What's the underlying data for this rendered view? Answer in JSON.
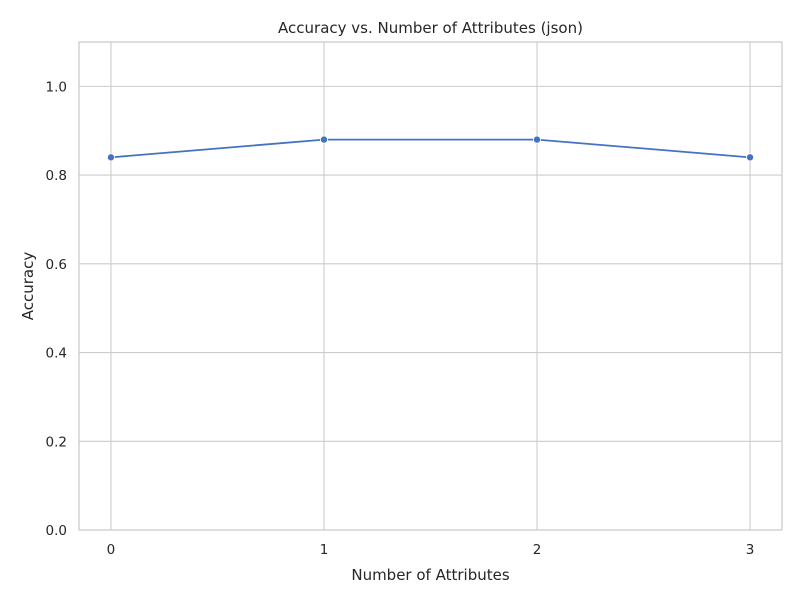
{
  "chart_data": {
    "type": "line",
    "title": "Accuracy vs. Number of Attributes (json)",
    "xlabel": "Number of Attributes",
    "ylabel": "Accuracy",
    "x": [
      0,
      1,
      2,
      3
    ],
    "x_tick_labels": [
      "0",
      "1",
      "2",
      "3"
    ],
    "xlim": [
      -0.15,
      3.15
    ],
    "ylim": [
      0,
      1.1
    ],
    "y_ticks": [
      0.0,
      0.2,
      0.4,
      0.6,
      0.8,
      1.0
    ],
    "y_tick_labels": [
      "0.0",
      "0.2",
      "0.4",
      "0.6",
      "0.8",
      "1.0"
    ],
    "grid": true,
    "series": [
      {
        "values": [
          0.84,
          0.88,
          0.88,
          0.84
        ],
        "color": "#4472c4"
      }
    ]
  }
}
